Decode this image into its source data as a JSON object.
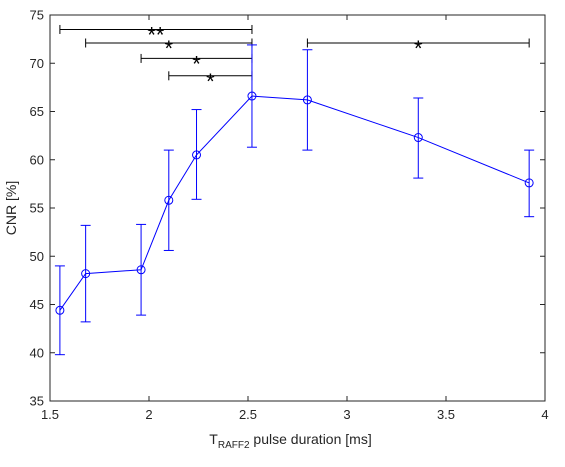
{
  "chart_data": {
    "type": "line",
    "title": "",
    "xlabel": {
      "main": "T",
      "subscript": "RAFF2",
      "rest": " pulse duration [ms]"
    },
    "ylabel": "CNR [%]",
    "xlim": [
      1.5,
      4
    ],
    "ylim": [
      35,
      75
    ],
    "xticks": [
      1.5,
      2,
      2.5,
      3,
      3.5,
      4
    ],
    "xtick_labels": [
      "1.5",
      "2",
      "2.5",
      "3",
      "3.5",
      "4"
    ],
    "yticks": [
      35,
      40,
      45,
      50,
      55,
      60,
      65,
      70,
      75
    ],
    "ytick_labels": [
      "35",
      "40",
      "45",
      "50",
      "55",
      "60",
      "65",
      "70",
      "75"
    ],
    "grid": false,
    "series": [
      {
        "color": "#0000ff",
        "marker": "circle",
        "x": [
          1.55,
          1.68,
          1.96,
          2.1,
          2.24,
          2.52,
          2.8,
          3.36,
          3.92
        ],
        "y": [
          44.4,
          48.2,
          48.6,
          55.8,
          60.5,
          66.6,
          66.2,
          62.3,
          57.6
        ],
        "error_low": [
          39.8,
          43.2,
          43.9,
          50.6,
          55.9,
          61.3,
          61.0,
          58.1,
          54.1
        ],
        "error_high": [
          49.0,
          53.2,
          53.3,
          61.0,
          65.2,
          71.9,
          71.4,
          66.4,
          61.0
        ]
      }
    ],
    "significance_brackets": [
      {
        "x_start": 1.55,
        "x_end": 2.52,
        "y": 73.5,
        "label": "**"
      },
      {
        "x_start": 1.68,
        "x_end": 2.52,
        "y": 72.1,
        "label": "*"
      },
      {
        "x_start": 1.96,
        "x_end": 2.52,
        "y": 70.5,
        "label": "*"
      },
      {
        "x_start": 2.1,
        "x_end": 2.52,
        "y": 68.7,
        "label": "*"
      },
      {
        "x_start": 2.8,
        "x_end": 3.92,
        "y": 72.1,
        "label": "*"
      }
    ]
  }
}
